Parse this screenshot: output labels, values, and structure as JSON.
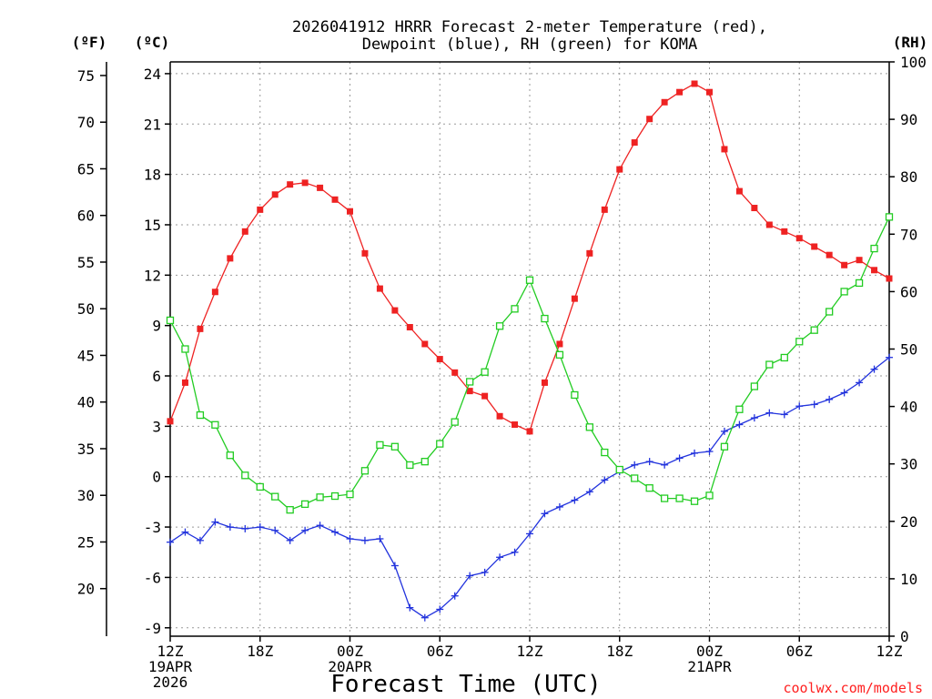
{
  "chart_data": {
    "type": "line",
    "title_lines": [
      "2026041912 HRRR Forecast 2-meter Temperature (red),",
      "Dewpoint (blue), RH (green) for KOMA"
    ],
    "xlabel": "Forecast Time (UTC)",
    "credit": "coolwx.com/models",
    "units": {
      "f": "(ºF)",
      "c": "(ºC)",
      "rh": "(RH)"
    },
    "x_tick_labels": [
      {
        "hour": 0,
        "lines": [
          "12Z",
          "19APR",
          "2026"
        ]
      },
      {
        "hour": 6,
        "lines": [
          "18Z"
        ]
      },
      {
        "hour": 12,
        "lines": [
          "00Z",
          "20APR"
        ]
      },
      {
        "hour": 18,
        "lines": [
          "06Z"
        ]
      },
      {
        "hour": 24,
        "lines": [
          "12Z"
        ]
      },
      {
        "hour": 30,
        "lines": [
          "18Z"
        ]
      },
      {
        "hour": 36,
        "lines": [
          "00Z",
          "21APR"
        ]
      },
      {
        "hour": 42,
        "lines": [
          "06Z"
        ]
      },
      {
        "hour": 48,
        "lines": [
          "12Z"
        ]
      }
    ],
    "xlim": [
      0,
      48
    ],
    "ylim_c": [
      -9.5,
      24.7
    ],
    "ylim_rh": [
      0,
      100
    ],
    "y_ticks_c": [
      "-9",
      "-6",
      "-3",
      "0",
      "3",
      "6",
      "9",
      "12",
      "15",
      "18",
      "21",
      "24"
    ],
    "y_ticks_f": [
      "20",
      "25",
      "30",
      "35",
      "40",
      "45",
      "50",
      "55",
      "60",
      "65",
      "70",
      "75"
    ],
    "y_ticks_rh": [
      "0",
      "10",
      "20",
      "30",
      "40",
      "50",
      "60",
      "70",
      "80",
      "90",
      "100"
    ],
    "colors": {
      "temp": "#ee2222",
      "dewpoint": "#2233dd",
      "rh": "#22cc22"
    },
    "series": [
      {
        "key": "temp",
        "axis": "c",
        "marker": "filled-square",
        "values": [
          3.3,
          5.6,
          8.8,
          11.0,
          13.0,
          14.6,
          15.9,
          16.8,
          17.4,
          17.5,
          17.2,
          16.5,
          15.8,
          13.3,
          11.2,
          9.9,
          8.9,
          7.9,
          7.0,
          6.2,
          5.1,
          4.8,
          3.6,
          3.1,
          2.7,
          5.6,
          7.9,
          10.6,
          13.3,
          15.9,
          18.3,
          19.9,
          21.3,
          22.3,
          22.9,
          23.4,
          22.9,
          19.5,
          17.0,
          16.0,
          15.0,
          14.6,
          14.2,
          13.7,
          13.2,
          12.6,
          12.9,
          12.3,
          11.8
        ]
      },
      {
        "key": "dewpoint",
        "axis": "c",
        "marker": "plus",
        "values": [
          -3.9,
          -3.3,
          -3.8,
          -2.7,
          -3.0,
          -3.1,
          -3.0,
          -3.2,
          -3.8,
          -3.2,
          -2.9,
          -3.3,
          -3.7,
          -3.8,
          -3.7,
          -5.3,
          -7.8,
          -8.4,
          -7.9,
          -7.1,
          -5.9,
          -5.7,
          -4.8,
          -4.5,
          -3.4,
          -2.2,
          -1.8,
          -1.4,
          -0.9,
          -0.2,
          0.3,
          0.7,
          0.9,
          0.7,
          1.1,
          1.4,
          1.5,
          2.7,
          3.1,
          3.5,
          3.8,
          3.7,
          4.2,
          4.3,
          4.6,
          5.0,
          5.6,
          6.4,
          7.1
        ]
      },
      {
        "key": "rh",
        "axis": "rh",
        "marker": "open-square",
        "values": [
          55.0,
          50.0,
          38.5,
          36.8,
          31.5,
          28.0,
          26.0,
          24.3,
          22.0,
          23.0,
          24.2,
          24.4,
          24.7,
          28.8,
          33.3,
          33.0,
          29.8,
          30.4,
          33.5,
          37.3,
          44.3,
          46.0,
          54.0,
          57.0,
          62.0,
          55.3,
          49.0,
          42.0,
          36.4,
          32.0,
          29.0,
          27.5,
          25.8,
          24.0,
          24.0,
          23.5,
          24.5,
          33.0,
          39.5,
          43.5,
          47.3,
          48.5,
          51.3,
          53.3,
          56.5,
          60.0,
          61.5,
          67.5,
          73.0
        ]
      }
    ]
  }
}
